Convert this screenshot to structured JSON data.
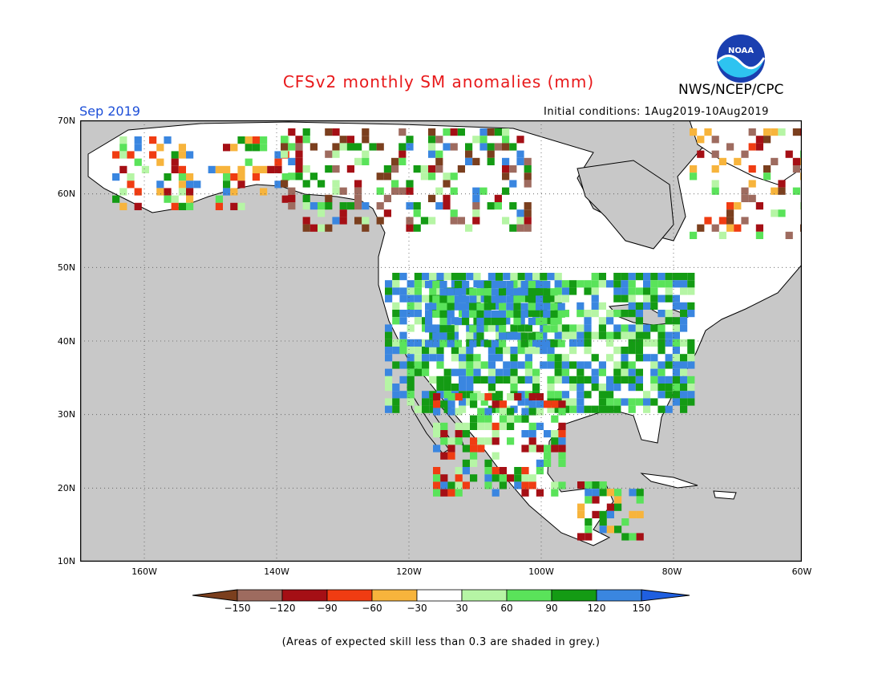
{
  "header": {
    "title": "CFSv2 monthly SM anomalies (mm)",
    "org": "NWS/NCEP/CPC",
    "valid_month": "Sep 2019",
    "initial_conditions": "Initial conditions: 1Aug2019-10Aug2019",
    "logo_text": "NOAA"
  },
  "map": {
    "lat_labels": [
      "70N",
      "60N",
      "50N",
      "40N",
      "30N",
      "20N",
      "10N"
    ],
    "lon_labels": [
      "160W",
      "140W",
      "120W",
      "100W",
      "80W",
      "60W"
    ],
    "colors": {
      "ocean": "#c8c8c8",
      "land": "#ffffff",
      "coast": "#000000"
    }
  },
  "legend": {
    "bins": [
      {
        "color": "#7b3f1e"
      },
      {
        "color": "#9e6b5f"
      },
      {
        "color": "#a50f15"
      },
      {
        "color": "#f03c12"
      },
      {
        "color": "#f7b43c"
      },
      {
        "color": "#ffffff"
      },
      {
        "color": "#b6f5a5"
      },
      {
        "color": "#5ae35a"
      },
      {
        "color": "#149b14"
      },
      {
        "color": "#3a86e0"
      },
      {
        "color": "#1f5fe0"
      }
    ],
    "labels": [
      "−150",
      "−120",
      "−90",
      "−60",
      "−30",
      "30",
      "60",
      "90",
      "120",
      "150"
    ]
  },
  "footnote": "(Areas of expected skill less than 0.3 are shaded in grey.)"
}
